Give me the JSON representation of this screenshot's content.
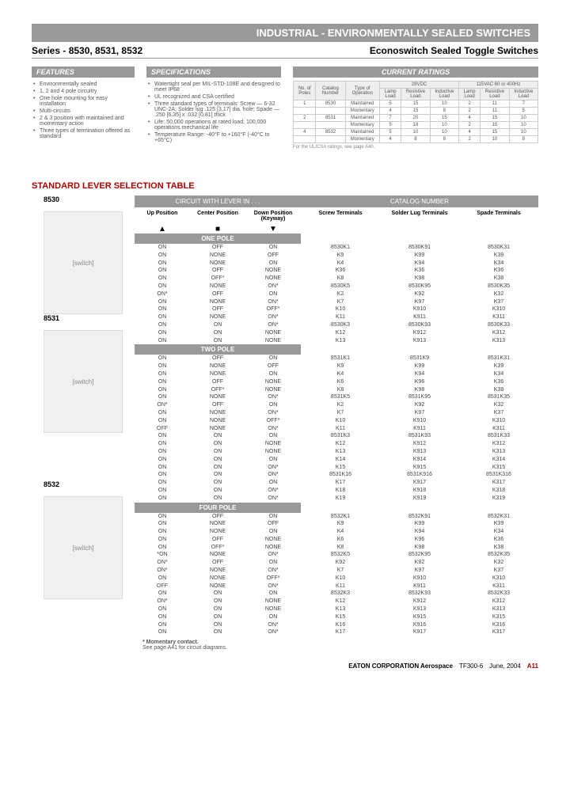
{
  "header": {
    "title": "INDUSTRIAL - ENVIRONMENTALLY SEALED SWITCHES",
    "series": "Series - 8530, 8531, 8532",
    "subtitle": "Econoswitch Sealed Toggle Switches"
  },
  "features": {
    "title": "FEATURES",
    "items": [
      "Environmentally sealed",
      "1, 2 and 4 pole circuitry",
      "One hole mounting for easy installation",
      "Multi-circuits",
      "2 & 3 position with maintained and momentary action",
      "Three types of termination offered as standard"
    ]
  },
  "specs": {
    "title": "SPECIFICATIONS",
    "items": [
      "Watertight seal per MIL-STD-108E and designed to meet IP68",
      "UL recognized and CSA certified",
      "Three standard types of terminals: Screw — 6-32 UNC-2A; Solder lug .125 [3,17] dia. hole; Spade — .250 [6,35] x .032 [0,81] thick",
      "Life: 50,000 operations at rated load; 100,000 operations mechanical life",
      "Temperature Range: -40°F to +160°F (-40°C to +65°C)"
    ]
  },
  "ratings": {
    "title": "CURRENT RATINGS",
    "col_headers": [
      "No. of Poles",
      "Catalog Number",
      "Type of Operation"
    ],
    "voltage_groups": [
      "28VDC",
      "115VAC 60 or 400Hz"
    ],
    "load_types": [
      "Lamp Load",
      "Resistive Load",
      "Inductive Load",
      "Lamp Load",
      "Resistive Load",
      "Inductive Load"
    ],
    "rows": [
      {
        "poles": "1",
        "catalog": "8530",
        "op": "Maintained",
        "vals": [
          "5",
          "15",
          "10",
          "2",
          "11",
          "7"
        ]
      },
      {
        "poles": "",
        "catalog": "",
        "op": "Momentary",
        "vals": [
          "4",
          "15",
          "8",
          "2",
          "11",
          "5"
        ]
      },
      {
        "poles": "2",
        "catalog": "8531",
        "op": "Maintained",
        "vals": [
          "7",
          "20",
          "15",
          "4",
          "15",
          "10"
        ]
      },
      {
        "poles": "",
        "catalog": "",
        "op": "Momentary",
        "vals": [
          "5",
          "18",
          "10",
          "2",
          "15",
          "10"
        ]
      },
      {
        "poles": "4",
        "catalog": "8532",
        "op": "Maintained",
        "vals": [
          "5",
          "10",
          "10",
          "4",
          "15",
          "10"
        ]
      },
      {
        "poles": "",
        "catalog": "",
        "op": "Momentary",
        "vals": [
          "4",
          "8",
          "8",
          "2",
          "10",
          "8"
        ]
      }
    ],
    "note": "For the UL/CSA ratings, see page A40."
  },
  "selection": {
    "title": "STANDARD LEVER SELECTION TABLE",
    "circuit_header": "CIRCUIT WITH LEVER IN . . .",
    "catalog_header": "CATALOG NUMBER",
    "pos_labels": {
      "up": "Up Position",
      "center": "Center Position",
      "down": "Down Position (Keyway)"
    },
    "cat_labels": {
      "screw": "Screw Terminals",
      "solder": "Solder Lug Terminals",
      "spade": "Spade Terminals"
    },
    "groups": [
      {
        "name": "ONE POLE",
        "series": "8530",
        "rows": [
          [
            "ON",
            "OFF",
            "ON",
            "8530K1",
            "8530K91",
            "8530K31"
          ],
          [
            "ON",
            "NONE",
            "OFF",
            "K9",
            "K99",
            "K39"
          ],
          [
            "ON",
            "NONE",
            "ON",
            "K4",
            "K94",
            "K34"
          ],
          [
            "ON",
            "OFF",
            "NONE",
            "K36",
            "K36",
            "K36"
          ],
          [
            "ON",
            "OFF*",
            "NONE",
            "K8",
            "K98",
            "K38"
          ],
          [
            "ON",
            "NONE",
            "ON*",
            "8530K5",
            "8530K95",
            "8530K35"
          ],
          [
            "ON*",
            "OFF",
            "ON",
            "K2",
            "K92",
            "K32"
          ],
          [
            "ON",
            "NONE",
            "ON*",
            "K7",
            "K97",
            "K37"
          ],
          [
            "ON",
            "OFF",
            "OFF*",
            "K10",
            "K910",
            "K310"
          ],
          [
            "ON",
            "NONE",
            "ON*",
            "K11",
            "K911",
            "K311"
          ],
          [
            "ON",
            "ON",
            "ON*",
            "8530K3",
            "8530K93",
            "8530K33"
          ],
          [
            "ON",
            "ON",
            "NONE",
            "K12",
            "K912",
            "K312"
          ],
          [
            "ON",
            "ON",
            "NONE",
            "K13",
            "K913",
            "K313"
          ]
        ]
      },
      {
        "name": "TWO POLE",
        "series": "8531",
        "rows": [
          [
            "ON",
            "OFF",
            "ON",
            "8531K1",
            "8531K9",
            "8531K31"
          ],
          [
            "ON",
            "NONE",
            "OFF",
            "K9",
            "K99",
            "K39"
          ],
          [
            "ON",
            "NONE",
            "ON",
            "K4",
            "K94",
            "K34"
          ],
          [
            "ON",
            "OFF",
            "NONE",
            "K6",
            "K96",
            "K36"
          ],
          [
            "ON",
            "OFF*",
            "NONE",
            "K8",
            "K98",
            "K38"
          ],
          [
            "ON",
            "NONE",
            "ON*",
            "8531K5",
            "8531K95",
            "8531K35"
          ],
          [
            "ON*",
            "OFF",
            "ON",
            "K2",
            "K92",
            "K32"
          ],
          [
            "ON",
            "NONE",
            "ON*",
            "K7",
            "K97",
            "K37"
          ],
          [
            "ON",
            "NONE",
            "OFF*",
            "K10",
            "K910",
            "K310"
          ],
          [
            "OFF",
            "NONE",
            "ON*",
            "K11",
            "K911",
            "K311"
          ],
          [
            "ON",
            "ON",
            "ON",
            "8531K3",
            "8531K93",
            "8531K33"
          ],
          [
            "ON",
            "ON",
            "NONE",
            "K12",
            "K912",
            "K312"
          ],
          [
            "ON",
            "ON",
            "NONE",
            "K13",
            "K913",
            "K313"
          ],
          [
            "ON",
            "ON",
            "ON",
            "K14",
            "K914",
            "K314"
          ],
          [
            "ON",
            "ON",
            "ON*",
            "K15",
            "K915",
            "K315"
          ],
          [
            "ON",
            "ON",
            "ON*",
            "8531K16",
            "8531K916",
            "8531K316"
          ],
          [
            "ON",
            "ON",
            "ON",
            "K17",
            "K917",
            "K317"
          ],
          [
            "ON",
            "ON",
            "ON*",
            "K18",
            "K918",
            "K318"
          ],
          [
            "ON",
            "ON",
            "ON*",
            "K19",
            "K919",
            "K319"
          ]
        ]
      },
      {
        "name": "FOUR POLE",
        "series": "8532",
        "rows": [
          [
            "ON",
            "OFF",
            "ON",
            "8532K1",
            "8532K91",
            "8532K31"
          ],
          [
            "ON",
            "NONE",
            "OFF",
            "K9",
            "K99",
            "K39"
          ],
          [
            "ON",
            "NONE",
            "ON",
            "K4",
            "K94",
            "K34"
          ],
          [
            "ON",
            "OFF",
            "NONE",
            "K6",
            "K96",
            "K36"
          ],
          [
            "ON",
            "OFF*",
            "NONE",
            "K8",
            "K98",
            "K38"
          ],
          [
            "*ON",
            "NONE",
            "ON*",
            "8532K5",
            "8532K95",
            "8532K35"
          ],
          [
            "ON*",
            "OFF",
            "ON",
            "K92",
            "K92",
            "K32"
          ],
          [
            "ON*",
            "NONE",
            "ON*",
            "K7",
            "K97",
            "K37"
          ],
          [
            "ON",
            "NONE",
            "OFF*",
            "K10",
            "K910",
            "K310"
          ],
          [
            "OFF",
            "NONE",
            "ON*",
            "K11",
            "K911",
            "K311"
          ],
          [
            "ON",
            "ON",
            "ON",
            "8532K3",
            "8532K93",
            "8532K33"
          ],
          [
            "ON*",
            "ON",
            "NONE",
            "K12",
            "K912",
            "K312"
          ],
          [
            "ON",
            "ON",
            "NONE",
            "K13",
            "K913",
            "K313"
          ],
          [
            "ON",
            "ON",
            "ON",
            "K15",
            "K915",
            "K315"
          ],
          [
            "ON",
            "ON",
            "ON*",
            "K16",
            "K916",
            "K316"
          ],
          [
            "ON",
            "ON",
            "ON*",
            "K17",
            "K917",
            "K317"
          ]
        ]
      }
    ],
    "footnote1": "* Momentary contact.",
    "footnote2": "See page A41 for circuit diagrams."
  },
  "footer": {
    "company": "EATON CORPORATION Aerospace",
    "doc": "TF300-6",
    "date": "June, 2004",
    "page": "A11"
  }
}
